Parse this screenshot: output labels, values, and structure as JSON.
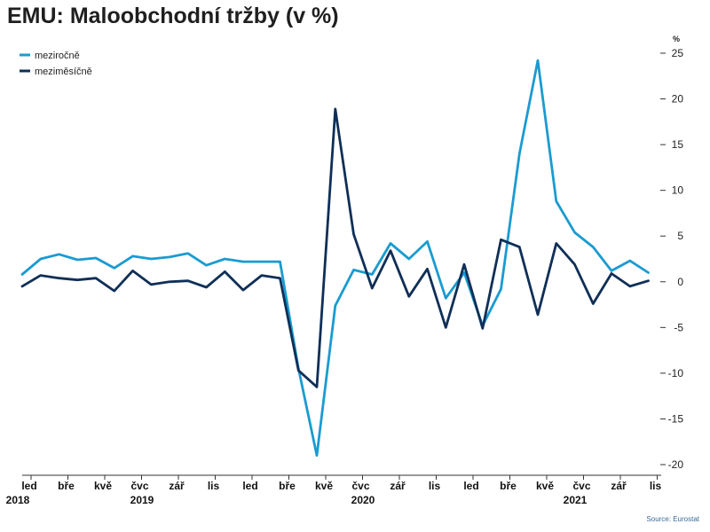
{
  "title": "EMU: Maloobchodní tržby (v %)",
  "source": "Source: Eurostat",
  "chart_data": {
    "type": "line",
    "title": "EMU: Maloobchodní tržby (v %)",
    "ylabel": "%",
    "ylim": [
      -20,
      25
    ],
    "yticks": [
      25,
      20,
      15,
      10,
      5,
      0,
      -5,
      -10,
      -15,
      -20
    ],
    "x": [
      "2018-01",
      "2018-02",
      "2018-03",
      "2018-04",
      "2018-05",
      "2018-06",
      "2018-07",
      "2018-08",
      "2018-09",
      "2018-10",
      "2018-11",
      "2018-12",
      "2019-01",
      "2019-02",
      "2019-03",
      "2019-04",
      "2019-05",
      "2019-06",
      "2019-07",
      "2019-08",
      "2019-09",
      "2019-10",
      "2019-11",
      "2019-12",
      "2020-01",
      "2020-02",
      "2020-03",
      "2020-04",
      "2020-05",
      "2020-06",
      "2020-07",
      "2020-08",
      "2020-09",
      "2020-10",
      "2020-11",
      "2020-12",
      "2021-01",
      "2021-02",
      "2021-03",
      "2021-04",
      "2021-05",
      "2021-06",
      "2021-07",
      "2021-08",
      "2021-09",
      "2021-10",
      "2021-11",
      "2021-12"
    ],
    "xticks": [
      {
        "label": "led",
        "x": "2018-01"
      },
      {
        "label": "bře",
        "x": "2018-03"
      },
      {
        "label": "kvě",
        "x": "2018-05"
      },
      {
        "label": "čvc",
        "x": "2018-07"
      },
      {
        "label": "zář",
        "x": "2018-09"
      },
      {
        "label": "lis",
        "x": "2018-11"
      },
      {
        "label": "led",
        "x": "2019-01"
      },
      {
        "label": "bře",
        "x": "2019-03"
      },
      {
        "label": "kvě",
        "x": "2019-05"
      },
      {
        "label": "čvc",
        "x": "2019-07"
      },
      {
        "label": "zář",
        "x": "2019-09"
      },
      {
        "label": "lis",
        "x": "2019-11"
      },
      {
        "label": "led",
        "x": "2020-01"
      },
      {
        "label": "bře",
        "x": "2020-03"
      },
      {
        "label": "kvě",
        "x": "2020-05"
      },
      {
        "label": "čvc",
        "x": "2020-07"
      },
      {
        "label": "zář",
        "x": "2020-09"
      },
      {
        "label": "lis",
        "x": "2020-11"
      }
    ],
    "years": [
      {
        "label": "2018",
        "x": "2018-01"
      },
      {
        "label": "2019",
        "x": "2018-07"
      },
      {
        "label": "2020",
        "x": "2019-07"
      },
      {
        "label": "2021",
        "x": "2020-07"
      }
    ],
    "legend": "top-left",
    "grid": false,
    "series": [
      {
        "name": "meziročně",
        "color": "#1a9bd1",
        "values": [
          0.8,
          2.5,
          3.0,
          2.4,
          2.6,
          1.5,
          2.8,
          2.5,
          2.7,
          3.1,
          1.8,
          2.5,
          2.2,
          2.2,
          2.2,
          -9.5,
          -19.0,
          -2.6,
          1.3,
          0.8,
          4.2,
          2.5,
          4.4,
          -1.8,
          1.0,
          -4.8,
          -0.8,
          14.0,
          24.2,
          8.8,
          5.4,
          3.8,
          1.2,
          2.3,
          1.0,
          null,
          null,
          null,
          null,
          null,
          null,
          null,
          null,
          null,
          null,
          null,
          null,
          null
        ]
      },
      {
        "name": "meziměsíčně",
        "color": "#0f2f57",
        "values": [
          -0.5,
          0.7,
          0.4,
          0.2,
          0.4,
          -1.0,
          1.2,
          -0.3,
          0.0,
          0.1,
          -0.6,
          1.1,
          -0.9,
          0.7,
          0.4,
          -9.7,
          -11.5,
          18.9,
          5.2,
          -0.7,
          3.4,
          -1.6,
          1.4,
          -5.0,
          1.9,
          -5.1,
          4.6,
          3.8,
          -3.6,
          4.2,
          1.9,
          -2.4,
          0.9,
          -0.5,
          0.1,
          null,
          null,
          null,
          null,
          null,
          null,
          null,
          null,
          null,
          null,
          null,
          null,
          null
        ]
      }
    ]
  }
}
